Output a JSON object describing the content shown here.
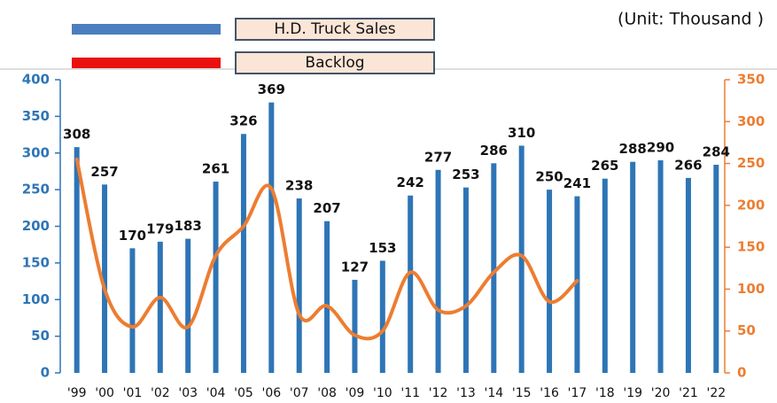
{
  "chart_data": {
    "type": "bar_line",
    "annotation": "(Unit: Thousand )",
    "categories": [
      "'99",
      "'00",
      "'01",
      "'02",
      "'03",
      "'04",
      "'05",
      "'06",
      "'07",
      "'08",
      "'09",
      "'10",
      "'11",
      "'12",
      "'13",
      "'14",
      "'15",
      "'16",
      "'17",
      "'18",
      "'19",
      "'20",
      "'21",
      "'22"
    ],
    "series": [
      {
        "name": "H.D. Truck Sales",
        "color": "#2e75b6",
        "legend_color": "#4a7ebf",
        "values": [
          308,
          257,
          170,
          179,
          183,
          261,
          326,
          369,
          238,
          207,
          127,
          153,
          242,
          277,
          253,
          286,
          310,
          250,
          241,
          265,
          288,
          290,
          266,
          284
        ]
      },
      {
        "name": "Backlog",
        "color": "#ed7d31",
        "legend_color": "#e8110f",
        "axis": "y2",
        "values": [
          255,
          100,
          55,
          90,
          55,
          140,
          175,
          220,
          70,
          80,
          45,
          50,
          120,
          75,
          80,
          120,
          140,
          85,
          110,
          null,
          null,
          null,
          null,
          null
        ]
      }
    ],
    "ylim": [
      0,
      400
    ],
    "yticks": [
      0,
      50,
      100,
      150,
      200,
      250,
      300,
      350,
      400
    ],
    "y2lim": [
      0,
      350
    ],
    "y2ticks": [
      0,
      50,
      100,
      150,
      200,
      250,
      300,
      350
    ]
  }
}
